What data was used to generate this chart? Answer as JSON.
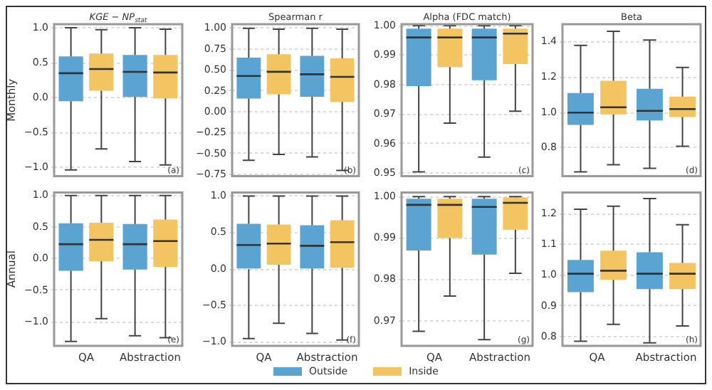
{
  "chart_data": [
    {
      "type": "box",
      "title": "KGE − NP$_{stat}$",
      "ylabel": "Monthly",
      "categories": [
        null,
        null
      ],
      "tick_labels": "y",
      "grid": "y",
      "annotations": [
        "(a)"
      ],
      "ylim": [
        -1.12,
        1.05
      ],
      "yticks": [
        {
          "value": -1,
          "label": "−1.0"
        },
        {
          "value": -0.5,
          "label": "−0.5"
        },
        {
          "value": 0,
          "label": "0.0"
        },
        {
          "value": 0.5,
          "label": "0.5"
        },
        {
          "value": 1,
          "label": "1.0"
        }
      ],
      "series": [
        {
          "color": "#5ba3d0",
          "boxes": [
            {
              "low": -1.03,
              "q1": -0.05,
              "median": 0.35,
              "q3": 0.59,
              "high": 1.0
            },
            {
              "low": -0.91,
              "q1": 0.01,
              "median": 0.37,
              "q3": 0.61,
              "high": 1.0
            }
          ]
        },
        {
          "color": "#f2c462",
          "boxes": [
            {
              "low": -0.73,
              "q1": 0.1,
              "median": 0.41,
              "q3": 0.63,
              "high": 0.97
            },
            {
              "low": -0.96,
              "q1": -0.01,
              "median": 0.36,
              "q3": 0.61,
              "high": 0.98
            }
          ]
        }
      ]
    },
    {
      "type": "box",
      "title": "Spearman r",
      "categories": [
        null,
        null
      ],
      "tick_labels": "y",
      "grid": "y",
      "annotations": [
        "(b)"
      ],
      "ylim": [
        -0.77,
        1.05
      ],
      "yticks": [
        {
          "value": -0.75,
          "label": "−0.75"
        },
        {
          "value": -0.5,
          "label": "−0.50"
        },
        {
          "value": -0.25,
          "label": "−0.25"
        },
        {
          "value": 0,
          "label": "0.00"
        },
        {
          "value": 0.25,
          "label": "0.25"
        },
        {
          "value": 0.5,
          "label": "0.50"
        },
        {
          "value": 0.75,
          "label": "0.75"
        },
        {
          "value": 1,
          "label": "1.00"
        }
      ],
      "series": [
        {
          "color": "#5ba3d0",
          "boxes": [
            {
              "low": -0.58,
              "q1": 0.16,
              "median": 0.43,
              "q3": 0.65,
              "high": 1.0
            },
            {
              "low": -0.54,
              "q1": 0.18,
              "median": 0.45,
              "q3": 0.67,
              "high": 1.0
            }
          ]
        },
        {
          "color": "#f2c462",
          "boxes": [
            {
              "low": -0.51,
              "q1": 0.21,
              "median": 0.48,
              "q3": 0.69,
              "high": 0.99
            },
            {
              "low": -0.7,
              "q1": 0.12,
              "median": 0.42,
              "q3": 0.64,
              "high": 0.99
            }
          ]
        }
      ]
    },
    {
      "type": "box",
      "title": "Alpha (FDC match)",
      "categories": [
        null,
        null
      ],
      "tick_labels": "y",
      "grid": "y",
      "annotations": [
        "(c)"
      ],
      "ylim": [
        0.949,
        1.0005
      ],
      "yticks": [
        {
          "value": 0.95,
          "label": "0.95"
        },
        {
          "value": 0.96,
          "label": "0.96"
        },
        {
          "value": 0.97,
          "label": "0.97"
        },
        {
          "value": 0.98,
          "label": "0.98"
        },
        {
          "value": 0.99,
          "label": "0.99"
        },
        {
          "value": 1,
          "label": "1.00"
        }
      ],
      "series": [
        {
          "color": "#5ba3d0",
          "boxes": [
            {
              "low": 0.9505,
              "q1": 0.9795,
              "median": 0.996,
              "q3": 0.999,
              "high": 1.0
            },
            {
              "low": 0.9555,
              "q1": 0.9815,
              "median": 0.996,
              "q3": 0.999,
              "high": 1.0
            }
          ]
        },
        {
          "color": "#f2c462",
          "boxes": [
            {
              "low": 0.967,
              "q1": 0.986,
              "median": 0.996,
              "q3": 0.999,
              "high": 1.0
            },
            {
              "low": 0.971,
              "q1": 0.987,
              "median": 0.9973,
              "q3": 0.999,
              "high": 1.0
            }
          ]
        }
      ]
    },
    {
      "type": "box",
      "title": "Beta",
      "categories": [
        null,
        null
      ],
      "tick_labels": "y",
      "grid": "y",
      "annotations": [
        "(d)"
      ],
      "ylim": [
        0.64,
        1.5
      ],
      "yticks": [
        {
          "value": 0.8,
          "label": "0.8"
        },
        {
          "value": 1,
          "label": "1.0"
        },
        {
          "value": 1.2,
          "label": "1.2"
        },
        {
          "value": 1.4,
          "label": "1.4"
        }
      ],
      "series": [
        {
          "color": "#5ba3d0",
          "boxes": [
            {
              "low": 0.665,
              "q1": 0.93,
              "median": 1.0,
              "q3": 1.11,
              "high": 1.38
            },
            {
              "low": 0.685,
              "q1": 0.955,
              "median": 1.01,
              "q3": 1.135,
              "high": 1.41
            }
          ]
        },
        {
          "color": "#f2c462",
          "boxes": [
            {
              "low": 0.705,
              "q1": 0.99,
              "median": 1.03,
              "q3": 1.18,
              "high": 1.46
            },
            {
              "low": 0.81,
              "q1": 0.975,
              "median": 1.02,
              "q3": 1.09,
              "high": 1.255
            }
          ]
        }
      ]
    },
    {
      "type": "box",
      "ylabel": "Annual",
      "categories": [
        "QA",
        "Abstraction"
      ],
      "grid": "y",
      "annotations": [
        "(e)"
      ],
      "ylim": [
        -1.38,
        1.05
      ],
      "yticks": [
        {
          "value": -1,
          "label": "−1.0"
        },
        {
          "value": -0.5,
          "label": "−0.5"
        },
        {
          "value": 0,
          "label": "0.0"
        },
        {
          "value": 0.5,
          "label": "0.5"
        },
        {
          "value": 1,
          "label": "1.0"
        }
      ],
      "series": [
        {
          "color": "#5ba3d0",
          "boxes": [
            {
              "low": -1.31,
              "q1": -0.19,
              "median": 0.23,
              "q3": 0.56,
              "high": 1.0
            },
            {
              "low": -1.22,
              "q1": -0.17,
              "median": 0.23,
              "q3": 0.55,
              "high": 1.0
            }
          ]
        },
        {
          "color": "#f2c462",
          "boxes": [
            {
              "low": -0.95,
              "q1": -0.04,
              "median": 0.3,
              "q3": 0.57,
              "high": 1.0
            },
            {
              "low": -1.25,
              "q1": -0.13,
              "median": 0.28,
              "q3": 0.62,
              "high": 1.0
            }
          ]
        }
      ]
    },
    {
      "type": "box",
      "categories": [
        "QA",
        "Abstraction"
      ],
      "grid": "y",
      "annotations": [
        "(f)"
      ],
      "ylim": [
        -1.05,
        1.05
      ],
      "yticks": [
        {
          "value": -1,
          "label": "−1.0"
        },
        {
          "value": -0.5,
          "label": "−0.5"
        },
        {
          "value": 0,
          "label": "0.0"
        },
        {
          "value": 0.5,
          "label": "0.5"
        },
        {
          "value": 1,
          "label": "1.0"
        }
      ],
      "series": [
        {
          "color": "#5ba3d0",
          "boxes": [
            {
              "low": -0.95,
              "q1": 0.0,
              "median": 0.33,
              "q3": 0.62,
              "high": 1.0
            },
            {
              "low": -0.88,
              "q1": 0.01,
              "median": 0.32,
              "q3": 0.6,
              "high": 1.0
            }
          ]
        },
        {
          "color": "#f2c462",
          "boxes": [
            {
              "low": -0.74,
              "q1": 0.06,
              "median": 0.35,
              "q3": 0.61,
              "high": 1.0
            },
            {
              "low": -0.97,
              "q1": 0.02,
              "median": 0.37,
              "q3": 0.67,
              "high": 1.0
            }
          ]
        }
      ]
    },
    {
      "type": "box",
      "categories": [
        "QA",
        "Abstraction"
      ],
      "grid": "y",
      "annotations": [
        "(g)"
      ],
      "ylim": [
        0.964,
        1.001
      ],
      "yticks": [
        {
          "value": 0.97,
          "label": "0.97"
        },
        {
          "value": 0.98,
          "label": "0.98"
        },
        {
          "value": 0.99,
          "label": "0.99"
        },
        {
          "value": 1,
          "label": "1.00"
        }
      ],
      "series": [
        {
          "color": "#5ba3d0",
          "boxes": [
            {
              "low": 0.9675,
              "q1": 0.987,
              "median": 0.998,
              "q3": 0.9995,
              "high": 1.0
            },
            {
              "low": 0.9655,
              "q1": 0.986,
              "median": 0.9975,
              "q3": 0.9995,
              "high": 1.0
            }
          ]
        },
        {
          "color": "#f2c462",
          "boxes": [
            {
              "low": 0.976,
              "q1": 0.99,
              "median": 0.998,
              "q3": 0.9995,
              "high": 1.0
            },
            {
              "low": 0.9815,
              "q1": 0.992,
              "median": 0.9985,
              "q3": 0.9998,
              "high": 1.0
            }
          ]
        }
      ]
    },
    {
      "type": "box",
      "categories": [
        "QA",
        "Abstraction"
      ],
      "grid": "y",
      "annotations": [
        "(h)"
      ],
      "legend": "bottom",
      "ylim": [
        0.77,
        1.27
      ],
      "yticks": [
        {
          "value": 0.8,
          "label": "0.8"
        },
        {
          "value": 0.9,
          "label": "0.9"
        },
        {
          "value": 1,
          "label": "1.0"
        },
        {
          "value": 1.1,
          "label": "1.1"
        },
        {
          "value": 1.2,
          "label": "1.2"
        }
      ],
      "series": [
        {
          "name": "Outside",
          "color": "#5ba3d0",
          "boxes": [
            {
              "low": 0.785,
              "q1": 0.945,
              "median": 1.005,
              "q3": 1.05,
              "high": 1.215
            },
            {
              "low": 0.78,
              "q1": 0.955,
              "median": 1.005,
              "q3": 1.075,
              "high": 1.25
            }
          ]
        },
        {
          "name": "Inside",
          "color": "#f2c462",
          "boxes": [
            {
              "low": 0.84,
              "q1": 0.985,
              "median": 1.015,
              "q3": 1.08,
              "high": 1.225
            },
            {
              "low": 0.835,
              "q1": 0.955,
              "median": 1.005,
              "q3": 1.04,
              "high": 1.165
            }
          ]
        }
      ]
    }
  ]
}
